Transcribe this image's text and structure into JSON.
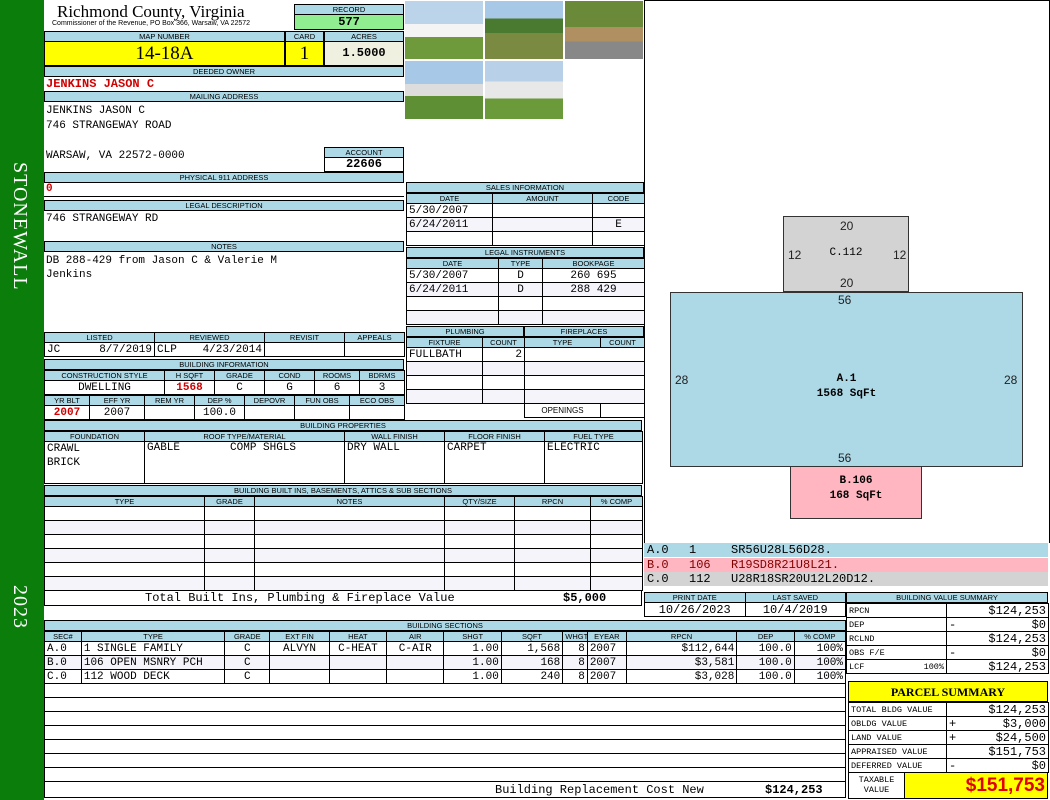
{
  "sidebar": {
    "district": "STONEWALL",
    "year": "2023",
    "color": "#008000"
  },
  "header": {
    "title": "Richmond County, Virginia",
    "subtitle": "Commissioner of the Revenue, PO Box 366, Warsaw, VA 22572"
  },
  "record": {
    "label": "RECORD",
    "value": "577"
  },
  "map": {
    "map_number_label": "MAP NUMBER",
    "map_number": "14-18A",
    "card_label": "CARD",
    "card": "1",
    "acres_label": "ACRES",
    "acres": "1.5000"
  },
  "owner": {
    "label": "DEEDED OWNER",
    "value": "JENKINS JASON C"
  },
  "mailing": {
    "label": "MAILING ADDRESS",
    "line1": "JENKINS JASON C",
    "line2": "746 STRANGEWAY ROAD",
    "line3": "WARSAW, VA 22572-0000"
  },
  "account": {
    "label": "ACCOUNT",
    "value": "22606"
  },
  "physical": {
    "label": "PHYSICAL 911 ADDRESS",
    "value": "0"
  },
  "legal": {
    "label": "LEGAL DESCRIPTION",
    "value": "746 STRANGEWAY RD"
  },
  "notes": {
    "label": "NOTES",
    "line1": "DB 288-429 from Jason C & Valerie M",
    "line2": "Jenkins"
  },
  "listing": {
    "headers": [
      "LISTED",
      "REVIEWED",
      "REVISIT",
      "APPEALS"
    ],
    "listed_by": "JC",
    "listed_date": "8/7/2019",
    "reviewed_by": "CLP",
    "reviewed_date": "4/23/2014",
    "revisit": "",
    "appeals": ""
  },
  "building_info": {
    "label": "BUILDING INFORMATION",
    "headers1": [
      "CONSTRUCTION STYLE",
      "H SQFT",
      "GRADE",
      "COND",
      "ROOMS",
      "BDRMS"
    ],
    "values1": [
      "DWELLING",
      "1568",
      "C",
      "G",
      "6",
      "3"
    ],
    "headers2": [
      "YR BLT",
      "EFF YR",
      "REM YR",
      "DEP %",
      "DEPOVR",
      "FUN OBS",
      "ECO OBS"
    ],
    "values2": [
      "2007",
      "2007",
      "",
      "100.0",
      "",
      "",
      ""
    ]
  },
  "sales": {
    "label": "SALES INFORMATION",
    "headers": [
      "DATE",
      "AMOUNT",
      "CODE"
    ],
    "rows": [
      [
        "5/30/2007",
        "",
        ""
      ],
      [
        "6/24/2011",
        "",
        "E"
      ],
      [
        "",
        "",
        ""
      ]
    ]
  },
  "instruments": {
    "label": "LEGAL INSTRUMENTS",
    "headers": [
      "DATE",
      "TYPE",
      "BOOKPAGE"
    ],
    "rows": [
      [
        "5/30/2007",
        "D",
        "260 695"
      ],
      [
        "6/24/2011",
        "D",
        "288 429"
      ],
      [
        "",
        "",
        ""
      ],
      [
        "",
        "",
        ""
      ]
    ]
  },
  "plumbing": {
    "label": "PLUMBING",
    "headers": [
      "FIXTURE",
      "COUNT"
    ],
    "rows": [
      [
        "FULLBATH",
        "2"
      ],
      [
        "",
        ""
      ],
      [
        "",
        ""
      ],
      [
        "",
        ""
      ]
    ]
  },
  "fireplaces": {
    "label": "FIREPLACES",
    "headers": [
      "TYPE",
      "COUNT"
    ],
    "openings_label": "OPENINGS",
    "openings": ""
  },
  "properties": {
    "label": "BUILDING PROPERTIES",
    "headers": [
      "FOUNDATION",
      "ROOF TYPE/MATERIAL",
      "WALL FINISH",
      "FLOOR FINISH",
      "FUEL TYPE"
    ],
    "foundation": [
      "CRAWL",
      "BRICK"
    ],
    "roof_type": "GABLE",
    "roof_material": "COMP SHGLS",
    "wall": "DRY WALL",
    "floor": "CARPET",
    "fuel": "ELECTRIC"
  },
  "builtins": {
    "label": "BUILDING BUILT INS, BASEMENTS, ATTICS & SUB SECTIONS",
    "headers": [
      "TYPE",
      "GRADE",
      "NOTES",
      "QTY/SIZE",
      "RPCN",
      "% COMP"
    ],
    "total_label": "Total Built Ins, Plumbing & Fireplace Value",
    "total": "$5,000"
  },
  "dates": {
    "print_label": "PRINT DATE",
    "print": "10/26/2023",
    "saved_label": "LAST SAVED",
    "saved": "10/4/2019"
  },
  "sections": {
    "label": "BUILDING SECTIONS",
    "headers": [
      "SEC#",
      "TYPE",
      "GRADE",
      "EXT FIN",
      "HEAT",
      "AIR",
      "SHGT",
      "SQFT",
      "WHGT",
      "EYEAR",
      "RPCN",
      "DEP",
      "% COMP"
    ],
    "rows": [
      [
        "A.0",
        "1 SINGLE FAMILY",
        "C",
        "ALVYN",
        "C-HEAT",
        "C-AIR",
        "1.00",
        "1,568",
        "8",
        "2007",
        "$112,644",
        "100.0",
        "100%"
      ],
      [
        "B.0",
        "106 OPEN MSNRY PCH",
        "C",
        "",
        "",
        "",
        "1.00",
        "168",
        "8",
        "2007",
        "$3,581",
        "100.0",
        "100%"
      ],
      [
        "C.0",
        "112 WOOD DECK",
        "C",
        "",
        "",
        "",
        "1.00",
        "240",
        "8",
        "2007",
        "$3,028",
        "100.0",
        "100%"
      ]
    ],
    "total_label": "Building Replacement Cost New",
    "total": "$124,253"
  },
  "sketch": {
    "c": {
      "label": "C.112",
      "top": "20",
      "bottom": "20",
      "left": "12",
      "right": "12"
    },
    "a": {
      "label": "A.1",
      "area": "1568 SqFt",
      "top": "56",
      "bottom": "56",
      "left": "28",
      "right": "28"
    },
    "b": {
      "label": "B.106",
      "area": "168 SqFt"
    },
    "legend": [
      {
        "sec": "A.0",
        "code": "1",
        "path": "SR56U28L56D28.",
        "color": "#add8e6"
      },
      {
        "sec": "B.0",
        "code": "106",
        "path": "R19SD8R21U8L21.",
        "color": "#ffb6c1"
      },
      {
        "sec": "C.0",
        "code": "112",
        "path": "U28R18SR20U12L20D12.",
        "color": "#d3d3d3"
      }
    ]
  },
  "value_summary": {
    "label": "BUILDING VALUE SUMMARY",
    "rows": [
      {
        "k": "RPCN",
        "op": "",
        "v": "$124,253"
      },
      {
        "k": "DEP",
        "op": "-",
        "v": "$0"
      },
      {
        "k": "RCLND",
        "op": "",
        "v": "$124,253"
      },
      {
        "k": "OBS F/E",
        "op": "-",
        "v": "$0"
      },
      {
        "k": "LCF",
        "pct": "100%",
        "op": "",
        "v": "$124,253"
      }
    ]
  },
  "parcel": {
    "label": "PARCEL SUMMARY",
    "rows": [
      {
        "k": "TOTAL BLDG VALUE",
        "op": "",
        "v": "$124,253"
      },
      {
        "k": "OBLDG VALUE",
        "op": "+",
        "v": "$3,000"
      },
      {
        "k": "LAND VALUE",
        "op": "+",
        "v": "$24,500"
      },
      {
        "k": "APPRAISED VALUE",
        "op": "",
        "v": "$151,753"
      },
      {
        "k": "DEFERRED VALUE",
        "op": "-",
        "v": "$0"
      }
    ],
    "taxable_label": "TAXABLE VALUE",
    "taxable": "$151,753"
  }
}
